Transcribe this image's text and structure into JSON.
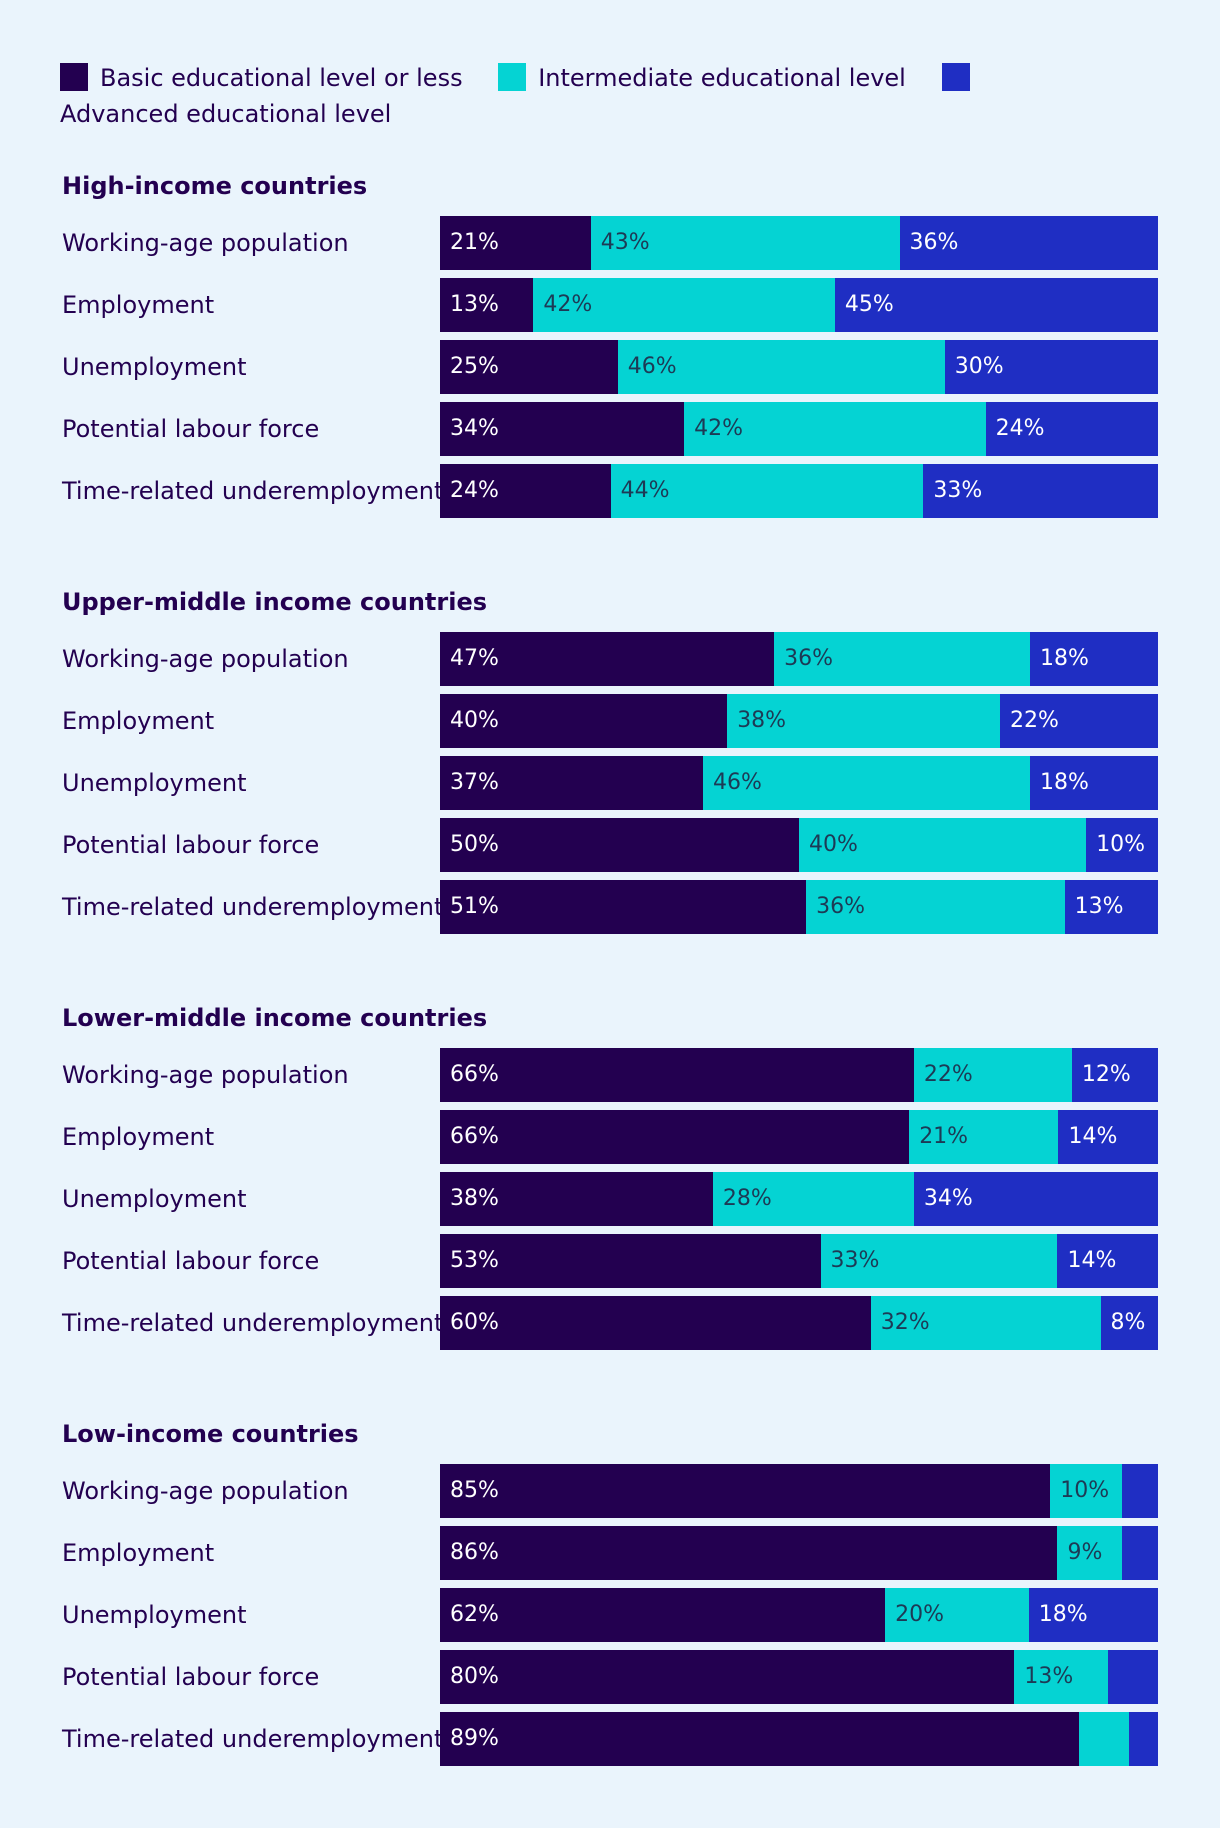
{
  "chart_data": {
    "type": "bar",
    "orientation": "horizontal",
    "stacked": true,
    "normalized_percent": true,
    "legend": [
      {
        "label": "Basic educational level or less",
        "color": "#230050"
      },
      {
        "label": "Intermediate educational level",
        "color": "#05d3d3"
      },
      {
        "label": "Advanced educational level",
        "color": "#1f2ec3"
      }
    ],
    "groups": [
      {
        "title": "High-income countries",
        "rows": [
          {
            "label": "Working-age population",
            "values": [
              21,
              43,
              36
            ],
            "labels": [
              "21%",
              "43%",
              "36%"
            ]
          },
          {
            "label": "Employment",
            "values": [
              13,
              42,
              45
            ],
            "labels": [
              "13%",
              "42%",
              "45%"
            ]
          },
          {
            "label": "Unemployment",
            "values": [
              25,
              46,
              30
            ],
            "labels": [
              "25%",
              "46%",
              "30%"
            ]
          },
          {
            "label": "Potential labour force",
            "values": [
              34,
              42,
              24
            ],
            "labels": [
              "34%",
              "42%",
              "24%"
            ]
          },
          {
            "label": "Time-related underemployment",
            "values": [
              24,
              44,
              33
            ],
            "labels": [
              "24%",
              "44%",
              "33%"
            ]
          }
        ]
      },
      {
        "title": "Upper-middle income countries",
        "rows": [
          {
            "label": "Working-age population",
            "values": [
              47,
              36,
              18
            ],
            "labels": [
              "47%",
              "36%",
              "18%"
            ]
          },
          {
            "label": "Employment",
            "values": [
              40,
              38,
              22
            ],
            "labels": [
              "40%",
              "38%",
              "22%"
            ]
          },
          {
            "label": "Unemployment",
            "values": [
              37,
              46,
              18
            ],
            "labels": [
              "37%",
              "46%",
              "18%"
            ]
          },
          {
            "label": "Potential labour force",
            "values": [
              50,
              40,
              10
            ],
            "labels": [
              "50%",
              "40%",
              "10%"
            ]
          },
          {
            "label": "Time-related underemployment",
            "values": [
              51,
              36,
              13
            ],
            "labels": [
              "51%",
              "36%",
              "13%"
            ]
          }
        ]
      },
      {
        "title": "Lower-middle income countries",
        "rows": [
          {
            "label": "Working-age population",
            "values": [
              66,
              22,
              12
            ],
            "labels": [
              "66%",
              "22%",
              "12%"
            ]
          },
          {
            "label": "Employment",
            "values": [
              66,
              21,
              14
            ],
            "labels": [
              "66%",
              "21%",
              "14%"
            ]
          },
          {
            "label": "Unemployment",
            "values": [
              38,
              28,
              34
            ],
            "labels": [
              "38%",
              "28%",
              "34%"
            ]
          },
          {
            "label": "Potential labour force",
            "values": [
              53,
              33,
              14
            ],
            "labels": [
              "53%",
              "33%",
              "14%"
            ]
          },
          {
            "label": "Time-related underemployment",
            "values": [
              60,
              32,
              8
            ],
            "labels": [
              "60%",
              "32%",
              "8%"
            ]
          }
        ]
      },
      {
        "title": "Low-income countries",
        "rows": [
          {
            "label": "Working-age population",
            "values": [
              85,
              10,
              5
            ],
            "labels": [
              "85%",
              "10%",
              ""
            ]
          },
          {
            "label": "Employment",
            "values": [
              86,
              9,
              5
            ],
            "labels": [
              "86%",
              "9%",
              ""
            ]
          },
          {
            "label": "Unemployment",
            "values": [
              62,
              20,
              18
            ],
            "labels": [
              "62%",
              "20%",
              "18%"
            ]
          },
          {
            "label": "Potential labour force",
            "values": [
              80,
              13,
              7
            ],
            "labels": [
              "80%",
              "13%",
              ""
            ]
          },
          {
            "label": "Time-related underemployment",
            "values": [
              89,
              7,
              4
            ],
            "labels": [
              "89%",
              "",
              ""
            ]
          }
        ]
      }
    ]
  }
}
